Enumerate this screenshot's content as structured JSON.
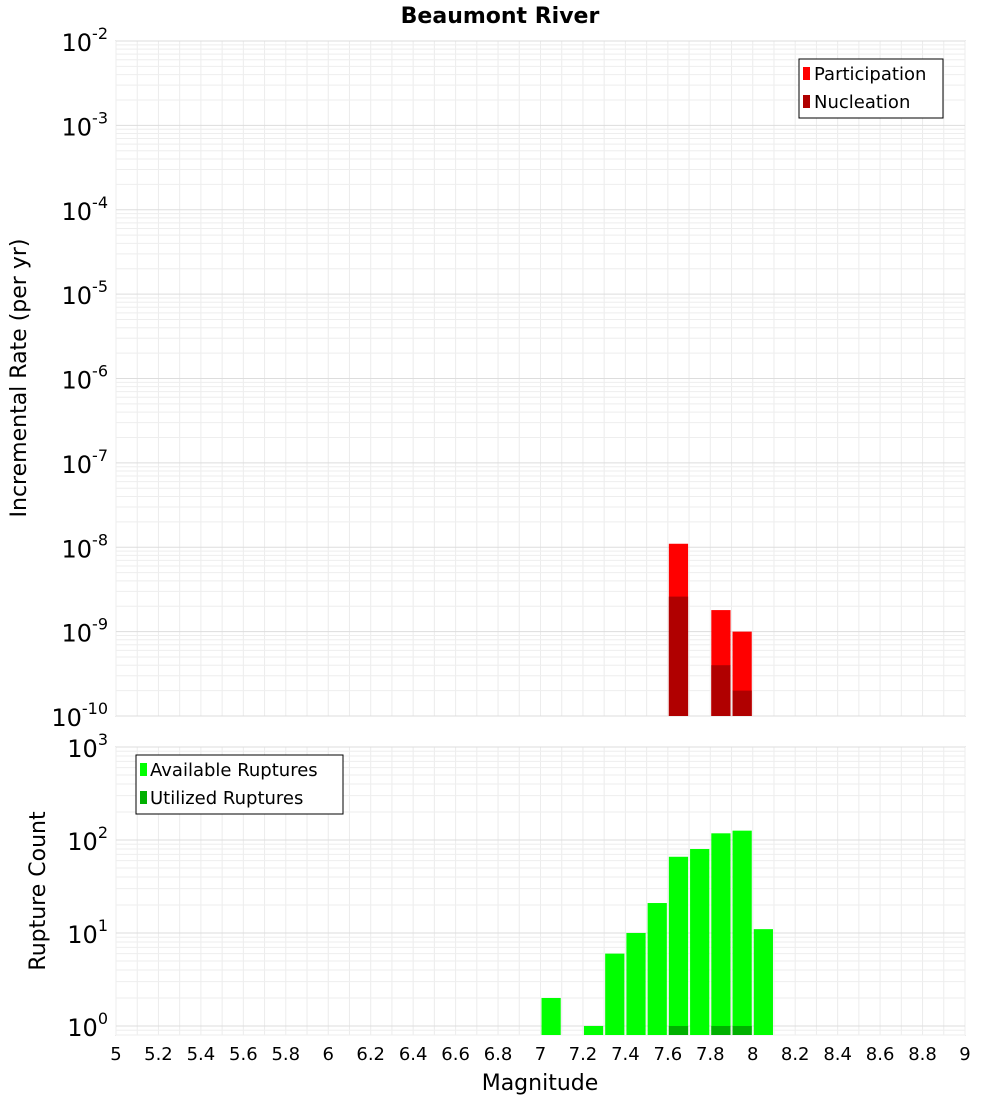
{
  "chart_data": [
    {
      "type": "bar",
      "title": "Beaumont River",
      "ylabel": "Incremental Rate (per yr)",
      "yscale": "log",
      "ylim": [
        1e-10,
        0.01
      ],
      "xlim": [
        5,
        9
      ],
      "legend": {
        "placement": "top-right",
        "entries": [
          "Participation",
          "Nucleation"
        ]
      },
      "bar_width": 0.1,
      "series": [
        {
          "name": "Participation",
          "color": "#ff0000",
          "x": [
            7.65,
            7.85,
            7.95
          ],
          "values": [
            1.1e-08,
            1.8e-09,
            1e-09
          ]
        },
        {
          "name": "Nucleation",
          "color": "#b00000",
          "x": [
            7.65,
            7.85,
            7.95
          ],
          "values": [
            2.6e-09,
            4e-10,
            2e-10
          ]
        }
      ]
    },
    {
      "type": "bar",
      "xlabel": "Magnitude",
      "ylabel": "Rupture Count",
      "yscale": "log",
      "ylim": [
        0.8,
        1000
      ],
      "xlim": [
        5,
        9
      ],
      "legend": {
        "placement": "top-left",
        "entries": [
          "Available Ruptures",
          "Utilized Ruptures"
        ]
      },
      "bar_width": 0.1,
      "series": [
        {
          "name": "Available Ruptures",
          "color": "#00ff00",
          "x": [
            7.05,
            7.25,
            7.35,
            7.45,
            7.55,
            7.65,
            7.75,
            7.85,
            7.95,
            8.05
          ],
          "values": [
            2,
            1,
            6,
            10,
            21,
            66,
            80,
            118,
            126,
            11
          ]
        },
        {
          "name": "Utilized Ruptures",
          "color": "#00b000",
          "x": [
            7.65,
            7.85,
            7.95
          ],
          "values": [
            1,
            1,
            1
          ]
        }
      ],
      "x_ticks": [
        "5",
        "5.2",
        "5.4",
        "5.6",
        "5.8",
        "6",
        "6.2",
        "6.4",
        "6.6",
        "6.8",
        "7",
        "7.2",
        "7.4",
        "7.6",
        "7.8",
        "8",
        "8.2",
        "8.4",
        "8.6",
        "8.8",
        "9"
      ]
    }
  ],
  "top_y_ticks": [
    {
      "base": "10",
      "exp": "-2"
    },
    {
      "base": "10",
      "exp": "-3"
    },
    {
      "base": "10",
      "exp": "-4"
    },
    {
      "base": "10",
      "exp": "-5"
    },
    {
      "base": "10",
      "exp": "-6"
    },
    {
      "base": "10",
      "exp": "-7"
    },
    {
      "base": "10",
      "exp": "-8"
    },
    {
      "base": "10",
      "exp": "-9"
    },
    {
      "base": "10",
      "exp": "-10"
    }
  ],
  "bottom_y_ticks": [
    {
      "base": "10",
      "exp": "3"
    },
    {
      "base": "10",
      "exp": "2"
    },
    {
      "base": "10",
      "exp": "1"
    },
    {
      "base": "10",
      "exp": "0"
    }
  ]
}
